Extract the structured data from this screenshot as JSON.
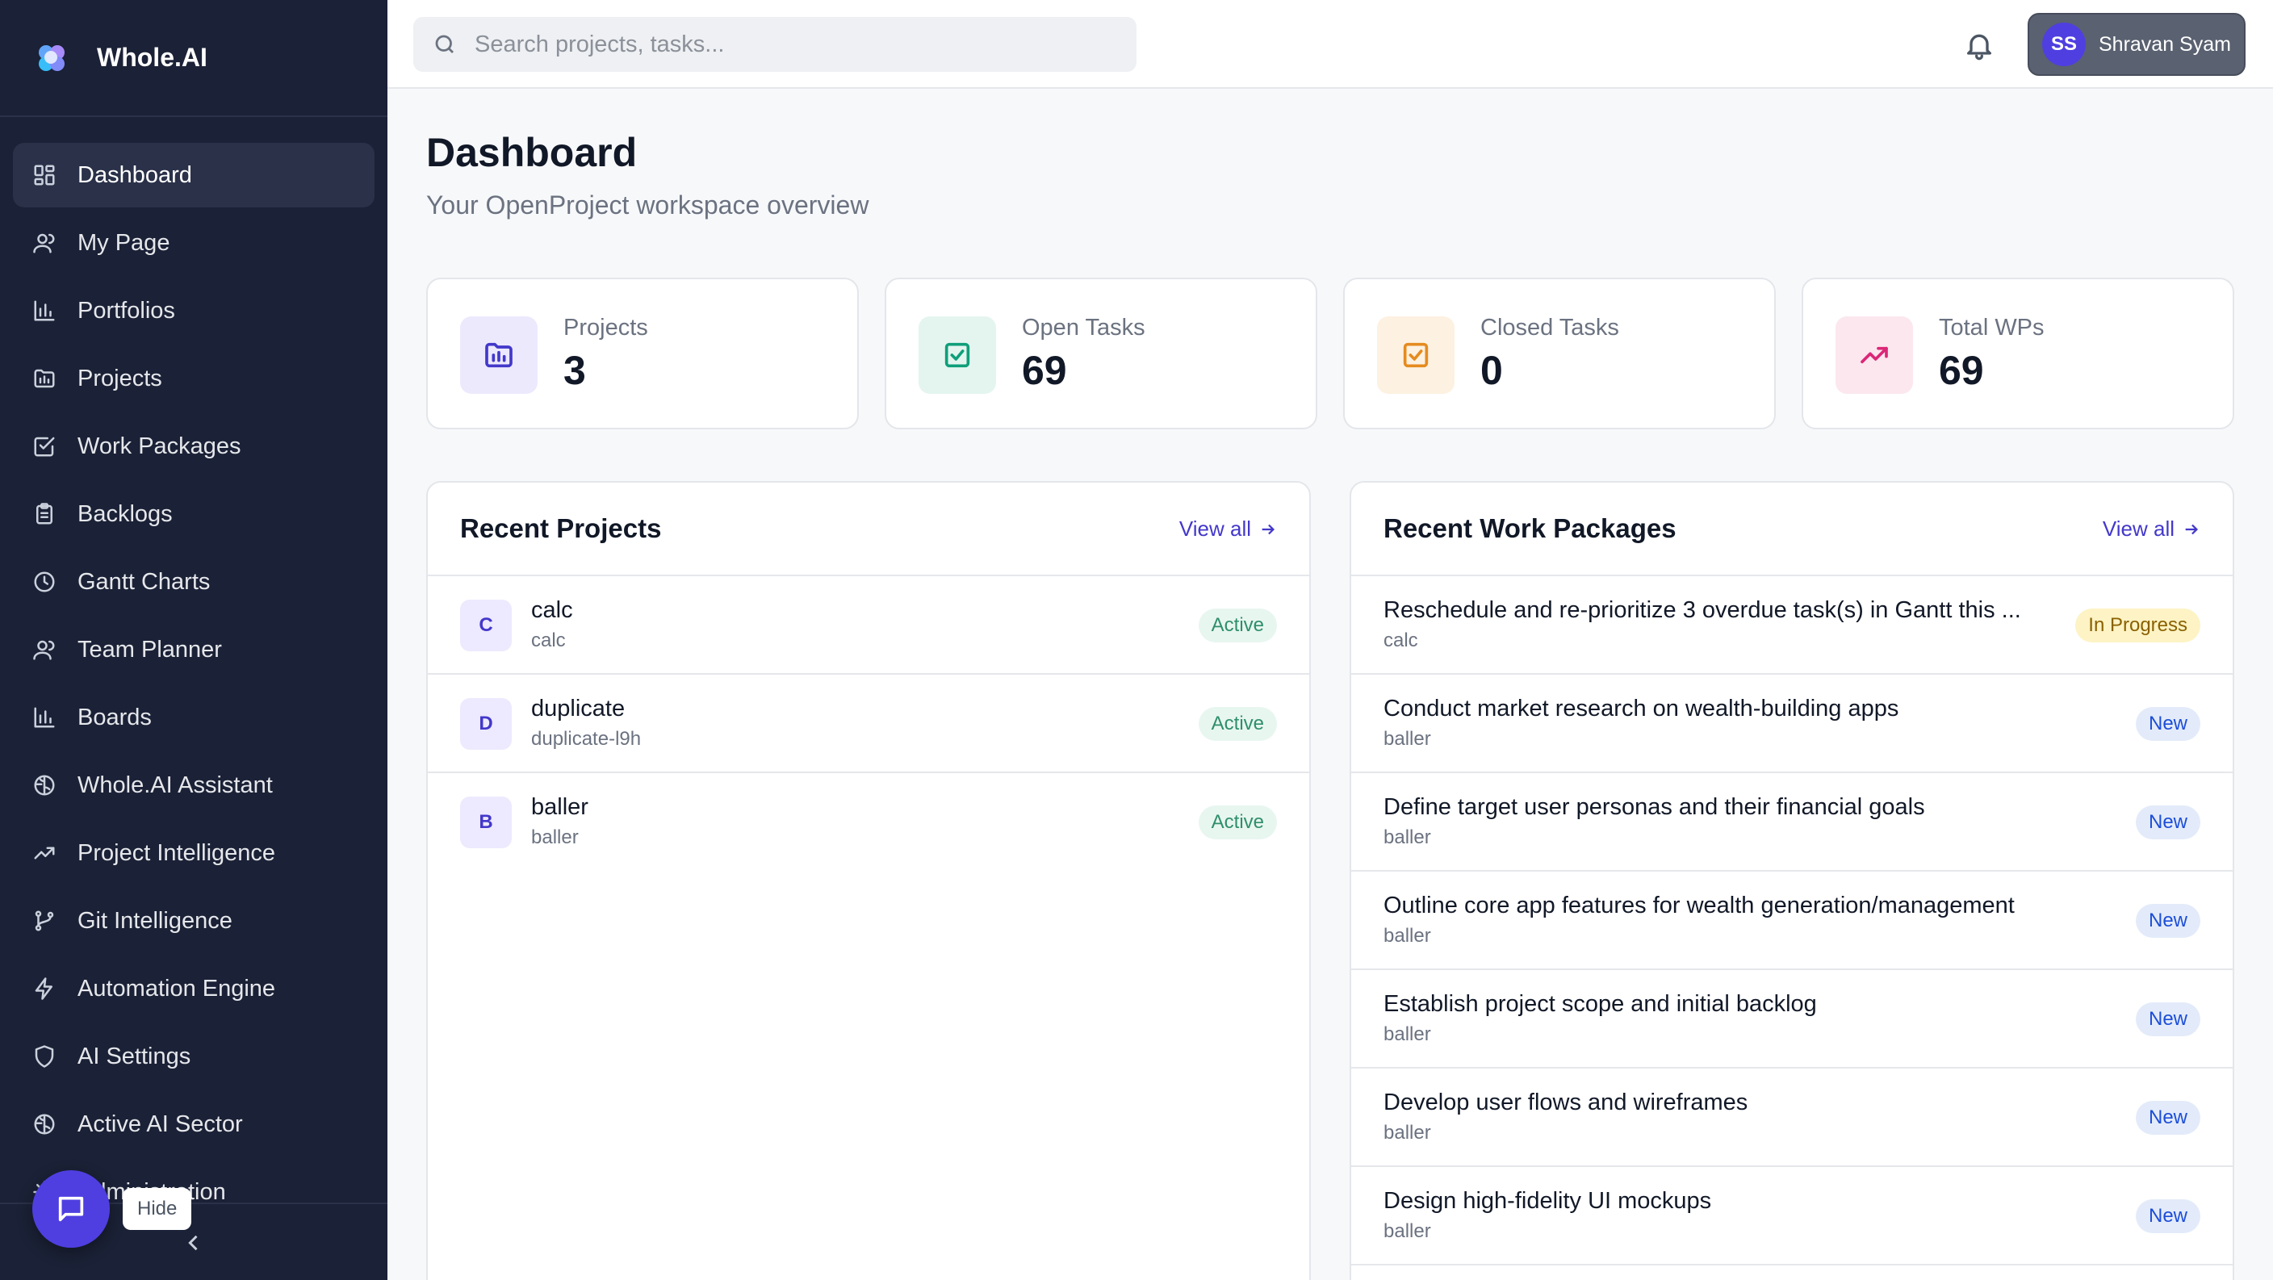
{
  "brand": {
    "name": "Whole.AI"
  },
  "sidebar": {
    "items": [
      {
        "label": "Dashboard",
        "icon": "dashboard-icon",
        "active": true
      },
      {
        "label": "My Page",
        "icon": "user-icon"
      },
      {
        "label": "Portfolios",
        "icon": "bar-chart-icon"
      },
      {
        "label": "Projects",
        "icon": "folder-icon"
      },
      {
        "label": "Work Packages",
        "icon": "check-square-icon"
      },
      {
        "label": "Backlogs",
        "icon": "clipboard-icon"
      },
      {
        "label": "Gantt Charts",
        "icon": "clock-icon"
      },
      {
        "label": "Team Planner",
        "icon": "users-icon"
      },
      {
        "label": "Boards",
        "icon": "bar-chart-icon"
      },
      {
        "label": "Whole.AI Assistant",
        "icon": "brain-icon"
      },
      {
        "label": "Project Intelligence",
        "icon": "trending-up-icon"
      },
      {
        "label": "Git Intelligence",
        "icon": "git-branch-icon"
      },
      {
        "label": "Automation Engine",
        "icon": "lightning-icon"
      },
      {
        "label": "AI Settings",
        "icon": "shield-icon"
      },
      {
        "label": "Active AI Sector",
        "icon": "brain-icon"
      },
      {
        "label": "Administration",
        "icon": "gear-icon"
      }
    ],
    "hide_label": "Hide"
  },
  "topbar": {
    "search_placeholder": "Search projects, tasks...",
    "user_initials": "SS",
    "user_name": "Shravan Syam"
  },
  "main": {
    "title": "Dashboard",
    "subtitle": "Your OpenProject workspace overview",
    "stats": [
      {
        "label": "Projects",
        "value": "3",
        "color": "#4338ca",
        "bg": "#ece9fd"
      },
      {
        "label": "Open Tasks",
        "value": "69",
        "color": "#0f9f7a",
        "bg": "#e4f5ef"
      },
      {
        "label": "Closed Tasks",
        "value": "0",
        "color": "#e58b1f",
        "bg": "#fdf1e1"
      },
      {
        "label": "Total WPs",
        "value": "69",
        "color": "#db2777",
        "bg": "#fce7ef"
      }
    ],
    "recent_projects": {
      "title": "Recent Projects",
      "view_all": "View all",
      "items": [
        {
          "letter": "C",
          "name": "calc",
          "identifier": "calc",
          "status": "Active"
        },
        {
          "letter": "D",
          "name": "duplicate",
          "identifier": "duplicate-l9h",
          "status": "Active"
        },
        {
          "letter": "B",
          "name": "baller",
          "identifier": "baller",
          "status": "Active"
        }
      ]
    },
    "recent_work_packages": {
      "title": "Recent Work Packages",
      "view_all": "View all",
      "items": [
        {
          "title": "Reschedule and re-prioritize 3 overdue task(s) in Gantt this ...",
          "project": "calc",
          "status": "In Progress"
        },
        {
          "title": "Conduct market research on wealth-building apps",
          "project": "baller",
          "status": "New"
        },
        {
          "title": "Define target user personas and their financial goals",
          "project": "baller",
          "status": "New"
        },
        {
          "title": "Outline core app features for wealth generation/management",
          "project": "baller",
          "status": "New"
        },
        {
          "title": "Establish project scope and initial backlog",
          "project": "baller",
          "status": "New"
        },
        {
          "title": "Develop user flows and wireframes",
          "project": "baller",
          "status": "New"
        },
        {
          "title": "Design high-fidelity UI mockups",
          "project": "baller",
          "status": "New"
        }
      ]
    }
  }
}
